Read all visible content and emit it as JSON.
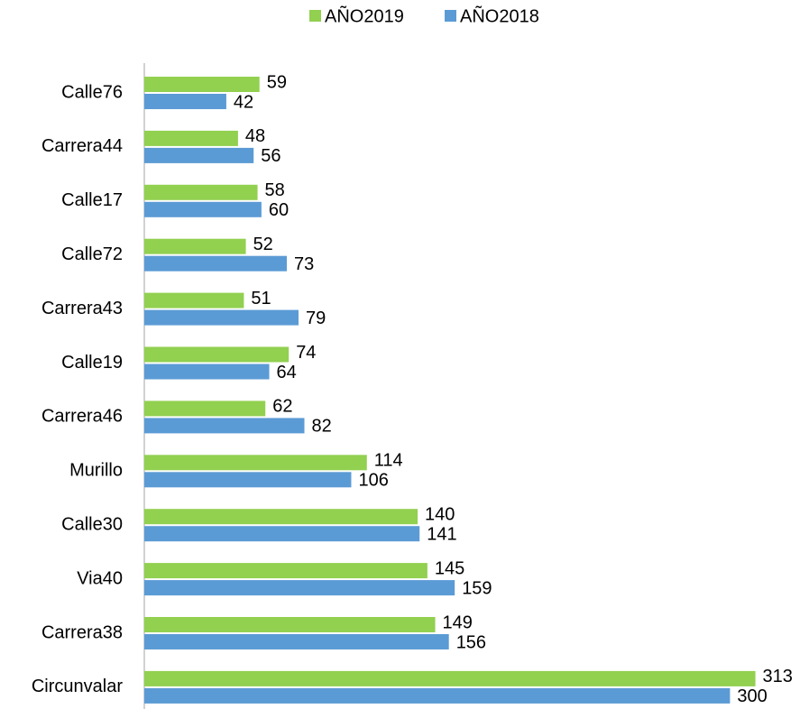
{
  "chart_data": {
    "type": "bar",
    "orientation": "horizontal",
    "categories": [
      "Calle76",
      "Carrera44",
      "Calle17",
      "Calle72",
      "Carrera43",
      "Calle19",
      "Carrera46",
      "Murillo",
      "Calle30",
      "Via40",
      "Carrera38",
      "Circunvalar"
    ],
    "series": [
      {
        "name": "AÑO2019",
        "color": "#92d050",
        "values": [
          59,
          48,
          58,
          52,
          51,
          74,
          62,
          114,
          140,
          145,
          149,
          313
        ]
      },
      {
        "name": "AÑO2018",
        "color": "#5b9bd5",
        "values": [
          42,
          56,
          60,
          73,
          79,
          64,
          82,
          106,
          141,
          159,
          156,
          300
        ]
      }
    ],
    "xlim": [
      0,
      340
    ],
    "legend": "top",
    "grid": false
  }
}
